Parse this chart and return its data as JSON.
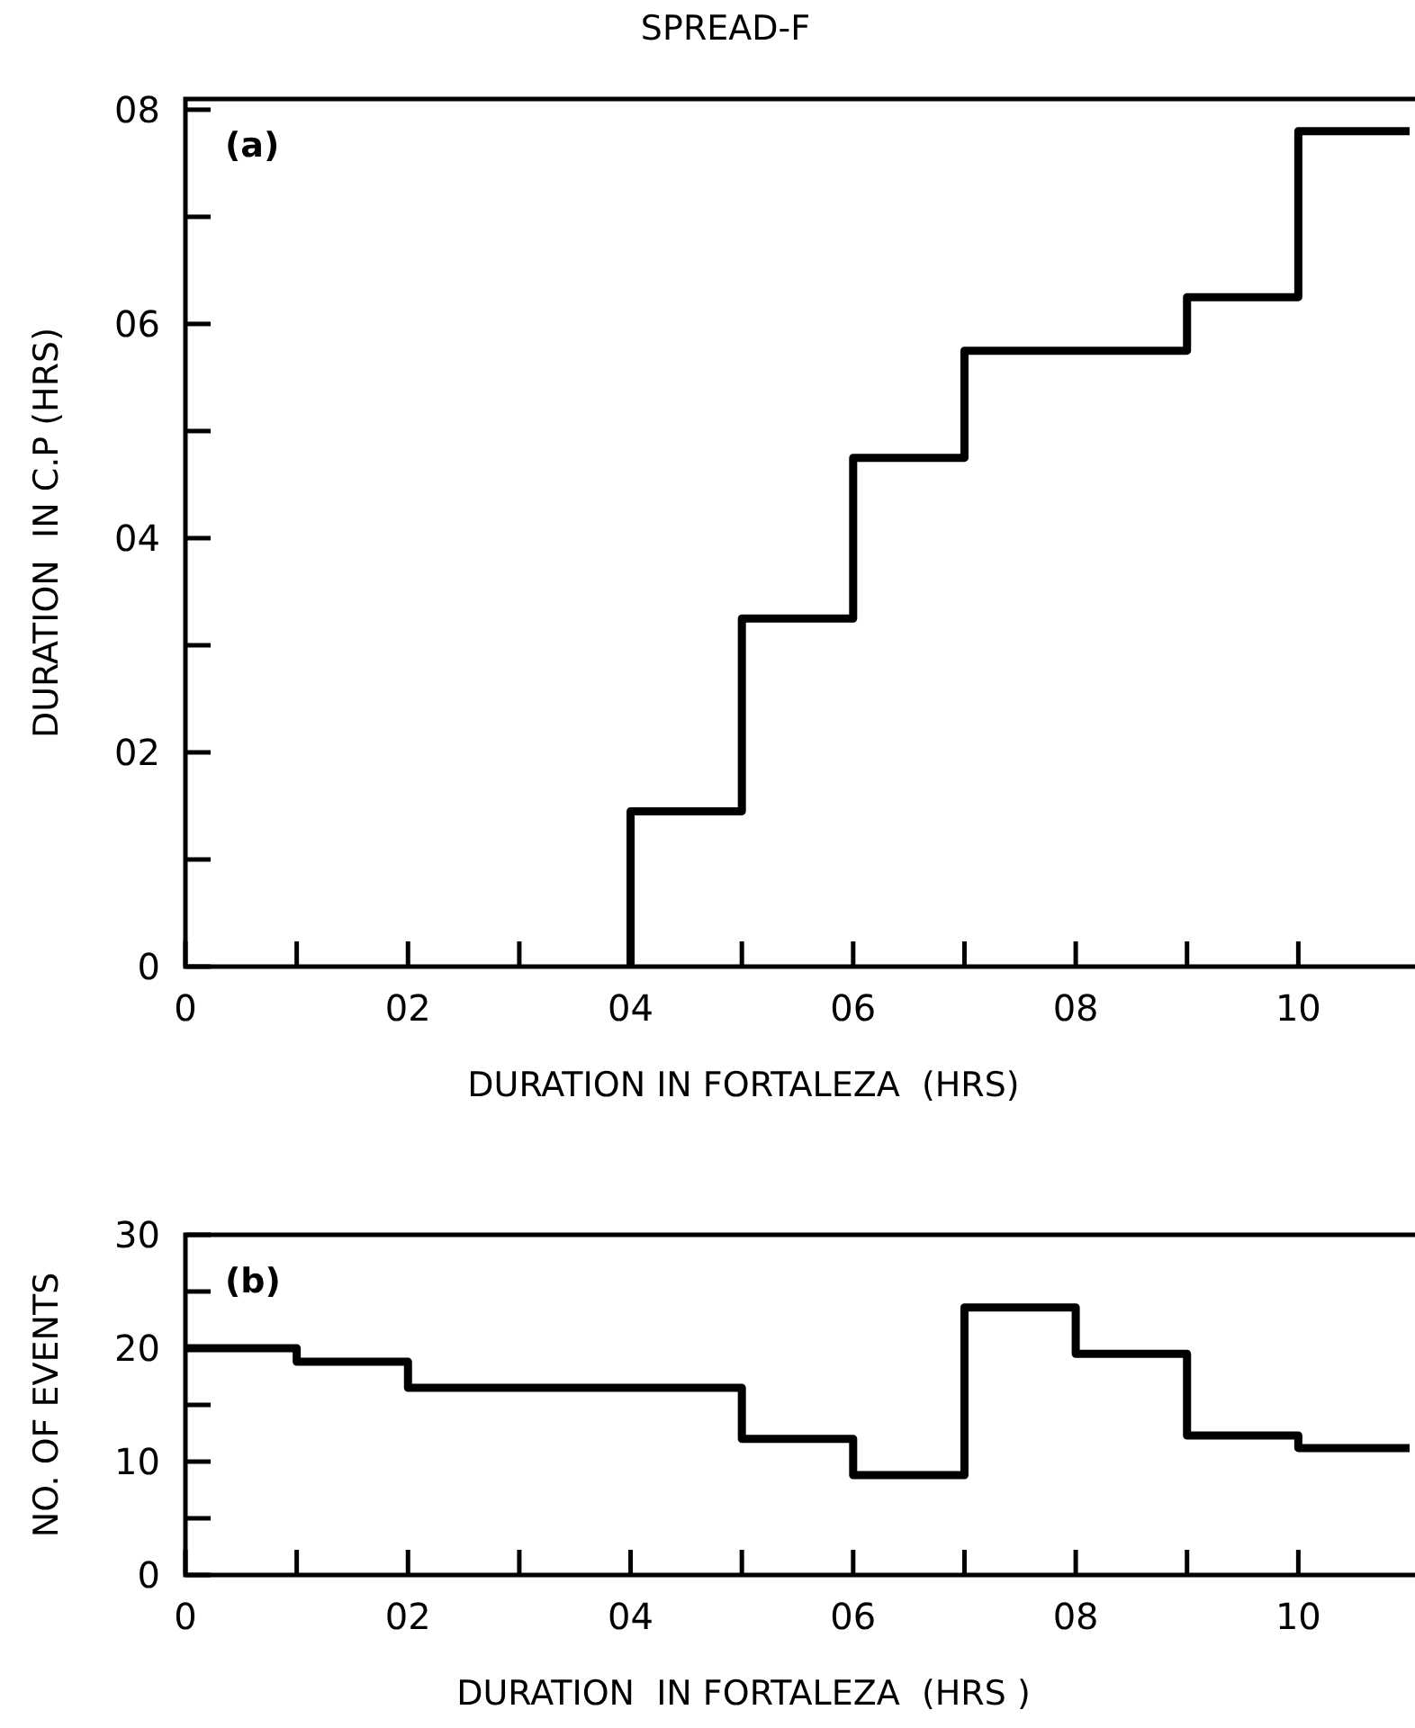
{
  "chart_data": [
    {
      "type": "step",
      "title": "SPREAD-F",
      "xlabel": "DURATION IN FORTALEZA  (HRS)",
      "ylabel": "DURATION  IN C.P (HRS)",
      "annotations": [
        "(a)"
      ],
      "line_style": "solid",
      "marker": "none",
      "grid": false,
      "xlim": [
        0,
        11
      ],
      "ylim": [
        0,
        8.1
      ],
      "xticks": [
        0,
        {
          "value": 1,
          "label": null
        },
        {
          "value": 2,
          "label": "02"
        },
        {
          "value": 3,
          "label": null
        },
        {
          "value": 4,
          "label": "04"
        },
        {
          "value": 5,
          "label": null
        },
        {
          "value": 6,
          "label": "06"
        },
        {
          "value": 7,
          "label": null
        },
        {
          "value": 8,
          "label": "08"
        },
        {
          "value": 9,
          "label": null
        },
        {
          "value": 10,
          "label": "10"
        }
      ],
      "yticks": [
        0,
        {
          "value": 1,
          "label": null
        },
        {
          "value": 2,
          "label": "02"
        },
        {
          "value": 3,
          "label": null
        },
        {
          "value": 4,
          "label": "04"
        },
        {
          "value": 5,
          "label": null
        },
        {
          "value": 6,
          "label": "06"
        },
        {
          "value": 7,
          "label": null
        },
        {
          "value": 8,
          "label": "08"
        }
      ],
      "series": [
        {
          "color": "#000000",
          "x": [
            4,
            4,
            5,
            6,
            7,
            9,
            10,
            11
          ],
          "values": [
            0,
            1.45,
            3.25,
            4.75,
            5.75,
            6.25,
            7.8,
            7.8
          ]
        }
      ]
    },
    {
      "type": "step",
      "xlabel": "DURATION  IN FORTALEZA  (HRS )",
      "ylabel": "NO. OF EVENTS",
      "annotations": [
        "(b)"
      ],
      "line_style": "solid",
      "marker": "none",
      "grid": false,
      "xlim": [
        0,
        11
      ],
      "ylim": [
        0,
        30
      ],
      "xticks": [
        0,
        {
          "value": 1,
          "label": null
        },
        {
          "value": 2,
          "label": "02"
        },
        {
          "value": 3,
          "label": null
        },
        {
          "value": 4,
          "label": "04"
        },
        {
          "value": 5,
          "label": null
        },
        {
          "value": 6,
          "label": "06"
        },
        {
          "value": 7,
          "label": null
        },
        {
          "value": 8,
          "label": "08"
        },
        {
          "value": 9,
          "label": null
        },
        {
          "value": 10,
          "label": "10"
        }
      ],
      "yticks": [
        0,
        {
          "value": 5,
          "label": null
        },
        10,
        {
          "value": 15,
          "label": null
        },
        20,
        {
          "value": 25,
          "label": null
        },
        30
      ],
      "series": [
        {
          "color": "#000000",
          "x": [
            0,
            1,
            2,
            5,
            6,
            7,
            8,
            9,
            10,
            11
          ],
          "values": [
            20,
            18.8,
            16.5,
            12,
            8.8,
            23.6,
            19.5,
            12.3,
            11.2,
            11.2
          ]
        }
      ]
    }
  ]
}
